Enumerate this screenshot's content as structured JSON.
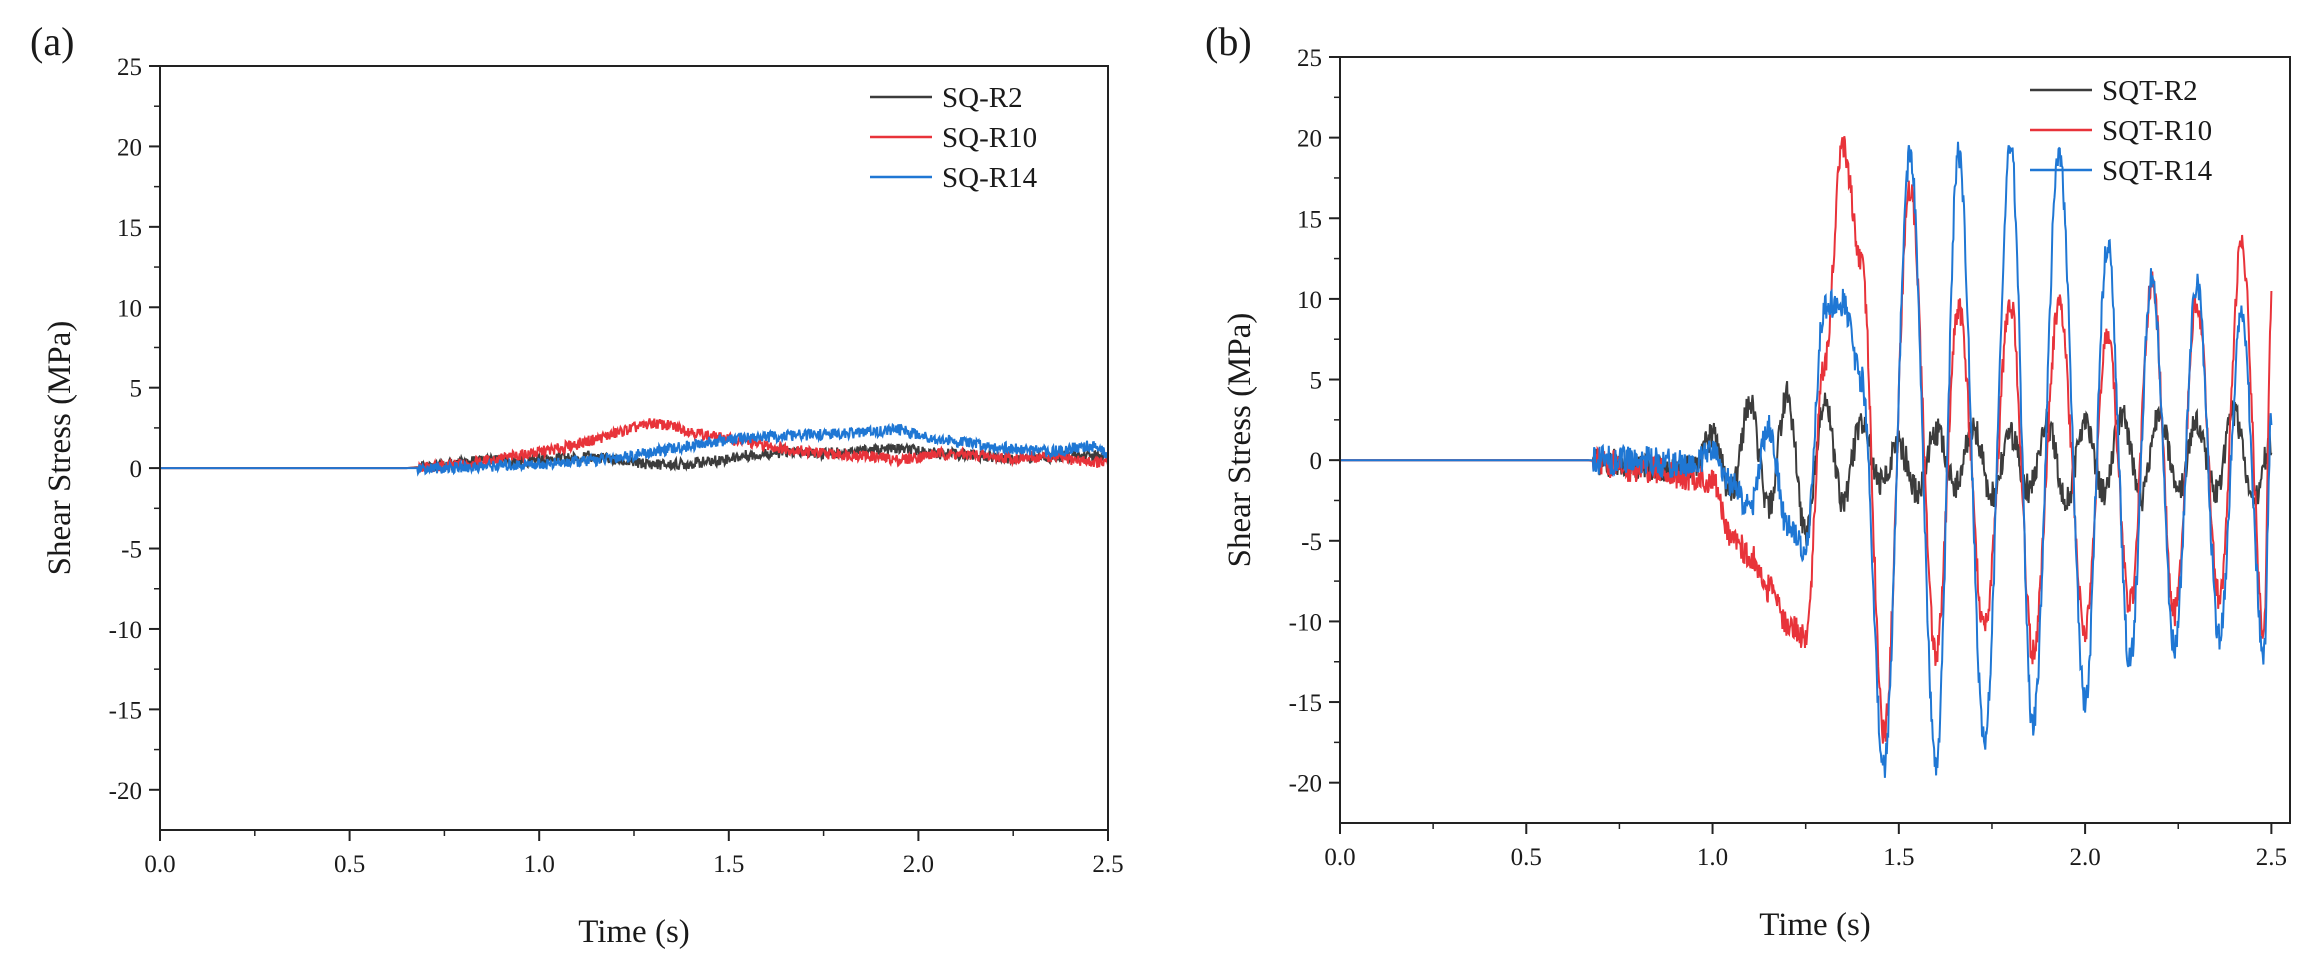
{
  "figure": {
    "panel_labels": [
      "(a)",
      "(b)"
    ]
  },
  "chart_data": [
    {
      "type": "line",
      "panel": "(a)",
      "title": "",
      "xlabel": "Time (s)",
      "ylabel": "Shear Stress (MPa)",
      "xlim": [
        0,
        2.5
      ],
      "ylim": [
        -22.5,
        25
      ],
      "xticks": [
        0.0,
        0.5,
        1.0,
        1.5,
        2.0,
        2.5
      ],
      "xtick_labels": [
        "0.0",
        "0.5",
        "1.0",
        "1.5",
        "2.0",
        "2.5"
      ],
      "yticks": [
        -20,
        -15,
        -10,
        -5,
        0,
        5,
        10,
        15,
        20,
        25
      ],
      "ytick_labels": [
        "-20",
        "-15",
        "-10",
        "-5",
        "0",
        "5",
        "10",
        "15",
        "20",
        "25"
      ],
      "grid": false,
      "legend_position": "top-right",
      "series": [
        {
          "name": "SQ-R2",
          "color": "#3c3c3c",
          "x": [
            0,
            0.65,
            0.75,
            0.85,
            0.95,
            1.05,
            1.15,
            1.25,
            1.35,
            1.45,
            1.55,
            1.65,
            1.75,
            1.85,
            1.95,
            2.05,
            2.15,
            2.25,
            2.35,
            2.45,
            2.5
          ],
          "y": [
            0,
            0,
            0.2,
            0.5,
            0.4,
            0.6,
            0.7,
            0.3,
            0.2,
            0.4,
            0.8,
            1.0,
            0.9,
            1.1,
            1.2,
            0.9,
            0.8,
            0.6,
            0.7,
            0.8,
            0.6
          ]
        },
        {
          "name": "SQ-R10",
          "color": "#e8333a",
          "x": [
            0,
            0.65,
            0.75,
            0.85,
            0.95,
            1.05,
            1.15,
            1.25,
            1.3,
            1.35,
            1.45,
            1.55,
            1.65,
            1.75,
            1.85,
            1.95,
            2.05,
            2.15,
            2.25,
            2.35,
            2.45,
            2.5
          ],
          "y": [
            0,
            0,
            0.1,
            0.4,
            0.8,
            1.2,
            1.8,
            2.5,
            2.8,
            2.6,
            2.0,
            1.6,
            1.2,
            0.9,
            0.8,
            0.5,
            0.9,
            0.8,
            0.6,
            0.7,
            0.4,
            0.3
          ]
        },
        {
          "name": "SQ-R14",
          "color": "#1f77d4",
          "x": [
            0,
            0.65,
            0.75,
            0.85,
            0.95,
            1.05,
            1.15,
            1.25,
            1.35,
            1.45,
            1.55,
            1.65,
            1.75,
            1.85,
            1.95,
            2.05,
            2.15,
            2.25,
            2.35,
            2.45,
            2.5
          ],
          "y": [
            0,
            0,
            0,
            0.1,
            0.2,
            0.3,
            0.5,
            0.8,
            1.2,
            1.6,
            1.9,
            2.0,
            2.1,
            2.2,
            2.4,
            1.8,
            1.5,
            1.2,
            1.0,
            1.4,
            0.9
          ]
        }
      ]
    },
    {
      "type": "line",
      "panel": "(b)",
      "title": "",
      "xlabel": "Time (s)",
      "ylabel": "Shear Stress (MPa)",
      "xlim": [
        0,
        2.55
      ],
      "ylim": [
        -22.5,
        25
      ],
      "xticks": [
        0.0,
        0.5,
        1.0,
        1.5,
        2.0,
        2.5
      ],
      "xtick_labels": [
        "0.0",
        "0.5",
        "1.0",
        "1.5",
        "2.0",
        "2.5"
      ],
      "yticks": [
        -20,
        -15,
        -10,
        -5,
        0,
        5,
        10,
        15,
        20,
        25
      ],
      "ytick_labels": [
        "-20",
        "-15",
        "-10",
        "-5",
        "0",
        "5",
        "10",
        "15",
        "20",
        "25"
      ],
      "grid": false,
      "legend_position": "top-right",
      "series": [
        {
          "name": "SQT-R2",
          "color": "#3c3c3c",
          "x": [
            0,
            0.65,
            0.8,
            0.95,
            1.0,
            1.05,
            1.1,
            1.15,
            1.2,
            1.25,
            1.3,
            1.35,
            1.4,
            1.45,
            1.5,
            1.55,
            1.6,
            1.65,
            1.7,
            1.75,
            1.8,
            1.85,
            1.9,
            1.95,
            2.0,
            2.05,
            2.1,
            2.15,
            2.2,
            2.25,
            2.3,
            2.35,
            2.4,
            2.45,
            2.5
          ],
          "y": [
            0,
            0,
            -0.3,
            -0.6,
            1.5,
            -2.0,
            3.5,
            -3.0,
            4.0,
            -4.5,
            3.8,
            -2.5,
            2.5,
            -1.5,
            1.0,
            -2.0,
            1.8,
            -1.5,
            2.0,
            -2.2,
            1.5,
            -1.8,
            2.2,
            -2.5,
            2.5,
            -2.0,
            2.8,
            -2.5,
            3.0,
            -2.2,
            2.5,
            -2.0,
            3.0,
            -2.5,
            1.0
          ]
        },
        {
          "name": "SQT-R10",
          "color": "#e8333a",
          "x": [
            0,
            0.65,
            0.8,
            0.95,
            1.0,
            1.05,
            1.1,
            1.15,
            1.2,
            1.25,
            1.3,
            1.35,
            1.4,
            1.46,
            1.53,
            1.6,
            1.66,
            1.73,
            1.8,
            1.86,
            1.93,
            2.0,
            2.06,
            2.12,
            2.18,
            2.24,
            2.3,
            2.36,
            2.42,
            2.48,
            2.5
          ],
          "y": [
            0,
            0,
            -0.5,
            -1.0,
            -1.5,
            -4.5,
            -6.0,
            -8.0,
            -10.0,
            -11.0,
            6.0,
            19.5,
            12.0,
            -17.0,
            17.0,
            -12.0,
            9.5,
            -10.5,
            9.8,
            -12.0,
            9.5,
            -10.5,
            8.0,
            -9.0,
            11.0,
            -9.5,
            10.0,
            -8.5,
            13.5,
            -10.5,
            10.0
          ]
        },
        {
          "name": "SQT-R14",
          "color": "#1f77d4",
          "x": [
            0,
            0.65,
            0.8,
            0.95,
            1.0,
            1.05,
            1.1,
            1.15,
            1.2,
            1.25,
            1.3,
            1.35,
            1.4,
            1.46,
            1.53,
            1.6,
            1.66,
            1.73,
            1.8,
            1.86,
            1.93,
            2.0,
            2.06,
            2.12,
            2.18,
            2.24,
            2.3,
            2.36,
            2.42,
            2.48,
            2.5
          ],
          "y": [
            0,
            0,
            0,
            -0.3,
            0.5,
            -1.5,
            -3.0,
            2.0,
            -4.0,
            -5.5,
            9.5,
            9.8,
            5.0,
            -19.0,
            19.0,
            -19.0,
            19.0,
            -17.5,
            19.5,
            -16.5,
            19.0,
            -15.0,
            13.5,
            -12.5,
            11.5,
            -11.5,
            11.0,
            -11.0,
            9.0,
            -12.0,
            3.0
          ]
        }
      ]
    }
  ]
}
